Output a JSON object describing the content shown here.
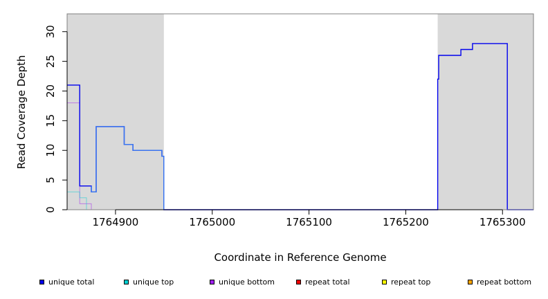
{
  "chart_data": {
    "type": "line",
    "xlabel": "Coordinate in Reference Genome",
    "ylabel": "Read Coverage Depth",
    "xlim": [
      1764850,
      1765332
    ],
    "ylim": [
      0,
      33
    ],
    "x_ticks": [
      1764900,
      1765000,
      1765100,
      1765200,
      1765300
    ],
    "x_tick_labels": [
      "1764900",
      "1765000",
      "1765100",
      "1765200",
      "1765300"
    ],
    "y_ticks": [
      0,
      5,
      10,
      15,
      20,
      25,
      30
    ],
    "y_tick_labels": [
      "0",
      "5",
      "10",
      "15",
      "20",
      "25",
      "30"
    ],
    "shaded_regions": [
      [
        1764850,
        1764950
      ],
      [
        1765233,
        1765332
      ]
    ],
    "grid": false,
    "legend_position": "bottom",
    "series": [
      {
        "name": "unique total",
        "color": "#0000ee",
        "points": [
          [
            1764850,
            21
          ],
          [
            1764863,
            21
          ],
          [
            1764863,
            4
          ],
          [
            1764875,
            4
          ],
          [
            1764875,
            3
          ],
          [
            1764880,
            3
          ],
          [
            1764880,
            14
          ],
          [
            1764909,
            14
          ],
          [
            1764909,
            11
          ],
          [
            1764918,
            11
          ],
          [
            1764918,
            10
          ],
          [
            1764948,
            10
          ],
          [
            1764948,
            9
          ],
          [
            1764950,
            9
          ],
          [
            1764950,
            0
          ],
          [
            1765233,
            0
          ],
          [
            1765233,
            22
          ],
          [
            1765234,
            22
          ],
          [
            1765234,
            26
          ],
          [
            1765257,
            26
          ],
          [
            1765257,
            27
          ],
          [
            1765269,
            27
          ],
          [
            1765269,
            28
          ],
          [
            1765305,
            28
          ],
          [
            1765305,
            0
          ],
          [
            1765332,
            0
          ]
        ]
      },
      {
        "name": "unique top",
        "color": "#00ced1",
        "points": [
          [
            1764850,
            3
          ],
          [
            1764863,
            3
          ],
          [
            1764863,
            2
          ],
          [
            1764870,
            2
          ],
          [
            1764870,
            0
          ],
          [
            1765332,
            0
          ]
        ]
      },
      {
        "name": "unique bottom",
        "color": "#a020f0",
        "points": [
          [
            1764850,
            18
          ],
          [
            1764863,
            18
          ],
          [
            1764863,
            1
          ],
          [
            1764875,
            1
          ],
          [
            1764875,
            0
          ],
          [
            1765332,
            0
          ]
        ]
      },
      {
        "name": "repeat total",
        "color": "#ee0000",
        "points": [
          [
            1764850,
            0
          ],
          [
            1765332,
            0
          ]
        ]
      },
      {
        "name": "repeat top",
        "color": "#ffff00",
        "points": [
          [
            1764850,
            0
          ],
          [
            1765332,
            0
          ]
        ]
      },
      {
        "name": "repeat bottom",
        "color": "#ffa500",
        "points": [
          [
            1764850,
            0
          ],
          [
            1765332,
            0
          ]
        ]
      }
    ]
  },
  "legend": [
    {
      "label": "unique total",
      "color": "#0000ee"
    },
    {
      "label": "unique top",
      "color": "#00ced1"
    },
    {
      "label": "unique bottom",
      "color": "#a020f0"
    },
    {
      "label": "repeat total",
      "color": "#ee0000"
    },
    {
      "label": "repeat top",
      "color": "#ffff00"
    },
    {
      "label": "repeat bottom",
      "color": "#ffa500"
    }
  ],
  "colors": {
    "shade": "#d9d9d9",
    "overlay_blue": "#3a7af0"
  }
}
